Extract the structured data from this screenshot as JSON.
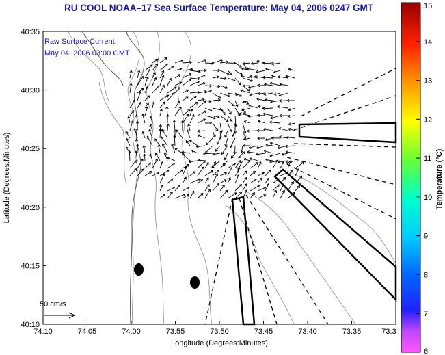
{
  "chart_data": {
    "type": "vector-field",
    "title": "RU COOL  NOAA–17  Sea Surface Temperature:  May 04, 2006 0247 GMT",
    "annotation_line1": "Raw Surface Current:",
    "annotation_line2": "May 04, 2006 03:00 GMT",
    "xlabel": "Longitude (Degrees:Minutes)",
    "ylabel": "Latitude (Degrees:Minutes)",
    "x_ticks": [
      "74:10",
      "74:05",
      "74:00",
      "73:55",
      "73:50",
      "73:45",
      "73:40",
      "73:35",
      "73:3"
    ],
    "y_ticks": [
      "40:35",
      "40:30",
      "40:25",
      "40:20",
      "40:15",
      "40:10"
    ],
    "xlim": [
      -74.1667,
      -73.5
    ],
    "ylim": [
      40.1667,
      40.5833
    ],
    "scale_label": "50 cm/s",
    "colorbar": {
      "label": "Temperature (°C)",
      "ticks": [
        "15",
        "14",
        "13",
        "12",
        "11",
        "10",
        "9",
        "8",
        "7",
        "6"
      ],
      "range": [
        6,
        15
      ]
    },
    "land_color": "#ffffff",
    "arrow_color": "#000000"
  }
}
